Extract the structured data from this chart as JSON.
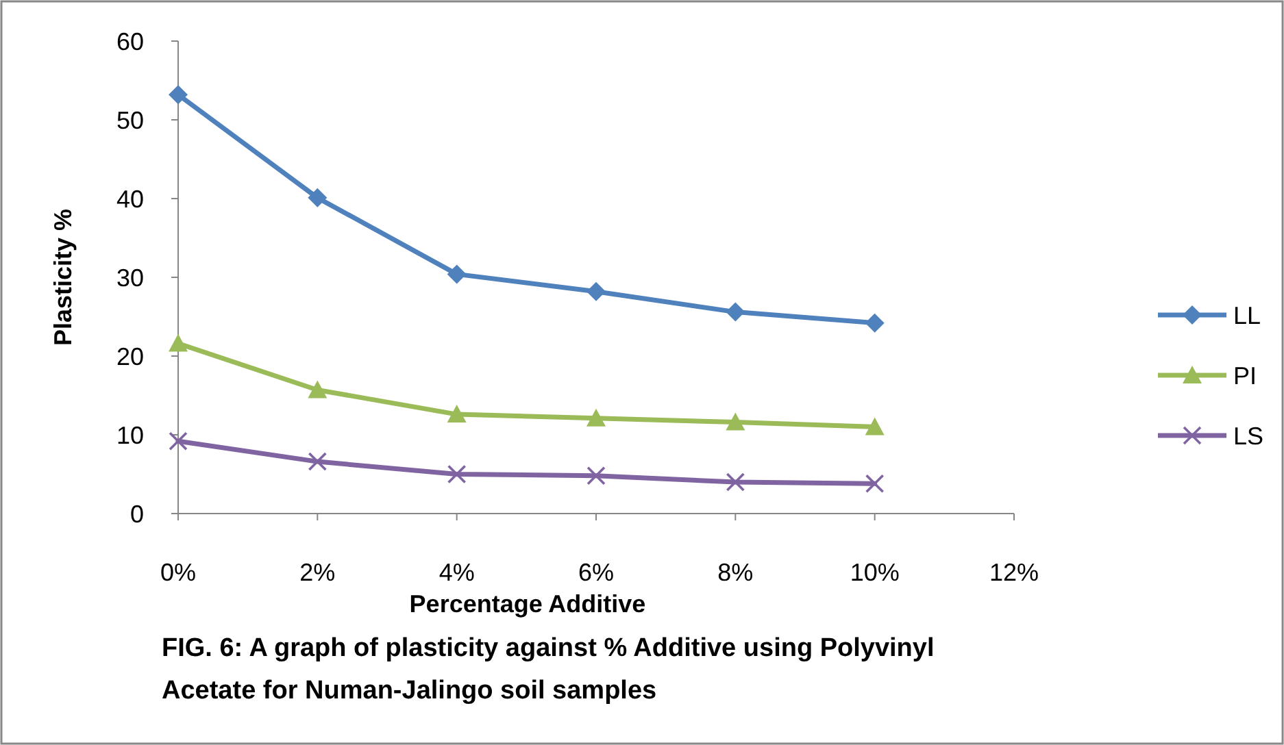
{
  "chart_data": {
    "type": "line",
    "xlabel": "Percentage Additive",
    "ylabel": "Plasticity %",
    "annotations": [
      "FIG. 6: A graph of plasticity against % Additive using Polyvinyl Acetate for Numan-Jalingo soil samples"
    ],
    "x": [
      0,
      2,
      4,
      6,
      8,
      10
    ],
    "xlim": [
      0,
      12
    ],
    "xticks": [
      {
        "value": 0,
        "label": "0%"
      },
      {
        "value": 2,
        "label": "2%"
      },
      {
        "value": 4,
        "label": "4%"
      },
      {
        "value": 6,
        "label": "6%"
      },
      {
        "value": 8,
        "label": "8%"
      },
      {
        "value": 10,
        "label": "10%"
      },
      {
        "value": 12,
        "label": "12%"
      }
    ],
    "ylim": [
      0,
      60
    ],
    "yticks": [
      0,
      10,
      20,
      30,
      40,
      50,
      60
    ],
    "grid": false,
    "legend": "right",
    "series": [
      {
        "name": "LL",
        "color": "#4f81bd",
        "marker": "diamond",
        "values": [
          53.2,
          40.1,
          30.4,
          28.2,
          25.6,
          24.2
        ]
      },
      {
        "name": "PI",
        "color": "#9bbb59",
        "marker": "triangle",
        "values": [
          21.6,
          15.7,
          12.6,
          12.1,
          11.6,
          11.0
        ]
      },
      {
        "name": "LS",
        "color": "#8064a2",
        "marker": "cross",
        "values": [
          9.2,
          6.6,
          5.0,
          4.8,
          4.0,
          3.8
        ]
      }
    ]
  }
}
